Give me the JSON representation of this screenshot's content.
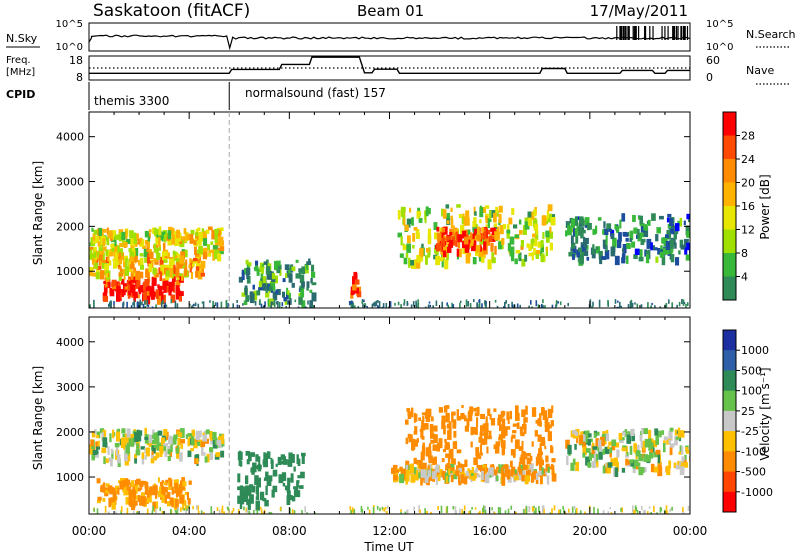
{
  "header": {
    "site": "Saskatoon (fitACF)",
    "beam": "Beam 01",
    "date": "17/May/2011"
  },
  "top_panels": {
    "nsky_label": "N.Sky",
    "nsky_ticks": [
      "10^5",
      "10^0"
    ],
    "nsearch_label": "N.Search",
    "nsearch_ticks": [
      "10^5",
      "10^0"
    ],
    "freq_label_1": "Freq.",
    "freq_label_2": "[MHz]",
    "freq_ticks": [
      "18",
      "8"
    ],
    "nave_label": "Nave",
    "nave_ticks": [
      "60",
      "0"
    ],
    "cpid_label": "CPID",
    "cpid_segments": [
      {
        "name": "themis 3300",
        "start_hour": 0,
        "end_hour": 5.6
      },
      {
        "name": "normalsound (fast) 157",
        "start_hour": 5.6,
        "end_hour": 24
      }
    ]
  },
  "colorbars": {
    "power": {
      "label": "Power [dB]",
      "ticks": [
        "28",
        "24",
        "20",
        "16",
        "12",
        "8",
        "4"
      ],
      "colors": [
        "#ff0000",
        "#ff4a00",
        "#ff8c00",
        "#ffb300",
        "#e6e600",
        "#a0e000",
        "#38b838",
        "#2e8b57",
        "#2a6b70",
        "#1c4c9c",
        "#0000ff"
      ]
    },
    "velocity": {
      "label": "Velocity [m s⁻¹]",
      "ticks": [
        "1000",
        "500",
        "100",
        "25",
        "-25",
        "-100",
        "-500",
        "-1000"
      ],
      "colors": [
        "#1c2fa0",
        "#2f5fa8",
        "#2e8b57",
        "#66c24a",
        "#c8c8c8",
        "#ffc000",
        "#ff8c00",
        "#ff4500",
        "#ff0000"
      ]
    }
  },
  "x_axis": {
    "label": "Time UT",
    "ticks": [
      "00:00",
      "04:00",
      "08:00",
      "12:00",
      "16:00",
      "20:00",
      "00:00"
    ]
  },
  "chart_data": [
    {
      "type": "heatmap",
      "name": "power",
      "xlabel": "Time UT",
      "ylabel": "Slant Range [km]",
      "x_range_hours": [
        0,
        24
      ],
      "ylim": [
        180,
        4550
      ],
      "yticks": [
        "4000",
        "3000",
        "2000",
        "1000"
      ],
      "zlabel": "Power [dB]",
      "zlim": [
        0,
        30
      ],
      "data_gap_hours": [
        9.0,
        10.3
      ],
      "echo_bands": [
        {
          "t0": 0.0,
          "t1": 5.3,
          "r0": 1400,
          "r1": 2000,
          "value": 18
        },
        {
          "t0": 0.5,
          "t1": 3.6,
          "r0": 450,
          "r1": 900,
          "value": 28
        },
        {
          "t0": 0.0,
          "t1": 4.5,
          "r0": 950,
          "r1": 1450,
          "value": 20
        },
        {
          "t0": 5.9,
          "t1": 8.9,
          "r0": 350,
          "r1": 1300,
          "value": 10
        },
        {
          "t0": 10.4,
          "t1": 10.7,
          "r0": 550,
          "r1": 1000,
          "value": 28
        },
        {
          "t0": 12.3,
          "t1": 18.5,
          "r0": 1250,
          "r1": 2500,
          "value": 16
        },
        {
          "t0": 13.8,
          "t1": 16.2,
          "r0": 1500,
          "r1": 2000,
          "value": 26
        },
        {
          "t0": 19.0,
          "t1": 24.0,
          "r0": 1300,
          "r1": 2300,
          "value": 8
        }
      ]
    },
    {
      "type": "heatmap",
      "name": "velocity",
      "xlabel": "Time UT",
      "ylabel": "Slant Range [km]",
      "x_range_hours": [
        0,
        24
      ],
      "ylim": [
        180,
        4550
      ],
      "yticks": [
        "4000",
        "3000",
        "2000",
        "1000"
      ],
      "zlabel": "Velocity [m s⁻¹]",
      "zlim": [
        -1000,
        1000
      ],
      "data_gap_hours": [
        9.0,
        10.3
      ],
      "echo_bands": [
        {
          "t0": 0.0,
          "t1": 5.3,
          "r0": 1400,
          "r1": 2100,
          "value": 0
        },
        {
          "t0": 0.3,
          "t1": 4.0,
          "r0": 450,
          "r1": 1000,
          "value": -150
        },
        {
          "t0": 5.9,
          "t1": 8.5,
          "r0": 450,
          "r1": 1600,
          "value": 300
        },
        {
          "t0": 12.6,
          "t1": 18.5,
          "r0": 1300,
          "r1": 2600,
          "value": -300
        },
        {
          "t0": 12.0,
          "t1": 18.5,
          "r0": 1000,
          "r1": 1300,
          "value": -80
        },
        {
          "t0": 19.0,
          "t1": 24.0,
          "r0": 1200,
          "r1": 2100,
          "value": 0
        }
      ]
    },
    {
      "type": "line",
      "name": "freq-nave",
      "series": [
        {
          "name": "Freq.",
          "x": [
            0,
            5.6,
            5.7,
            7.6,
            7.7,
            8.8,
            8.9,
            10.8,
            11.0,
            11.3,
            11.4,
            12.3,
            12.4,
            18.0,
            18.1,
            19.0,
            19.1,
            21.2,
            21.3,
            22.5,
            22.6,
            23.0,
            23.1,
            24
          ],
          "y": [
            10.8,
            10.8,
            12.4,
            12.4,
            14.5,
            14.5,
            17.5,
            17.5,
            11.0,
            11.0,
            12.5,
            12.5,
            10.8,
            10.8,
            12.8,
            12.8,
            10.8,
            10.8,
            12.0,
            12.0,
            10.8,
            10.8,
            12.0,
            12.0
          ]
        },
        {
          "name": "Nave",
          "x": [
            0,
            24
          ],
          "y": [
            30,
            30
          ]
        }
      ]
    }
  ]
}
